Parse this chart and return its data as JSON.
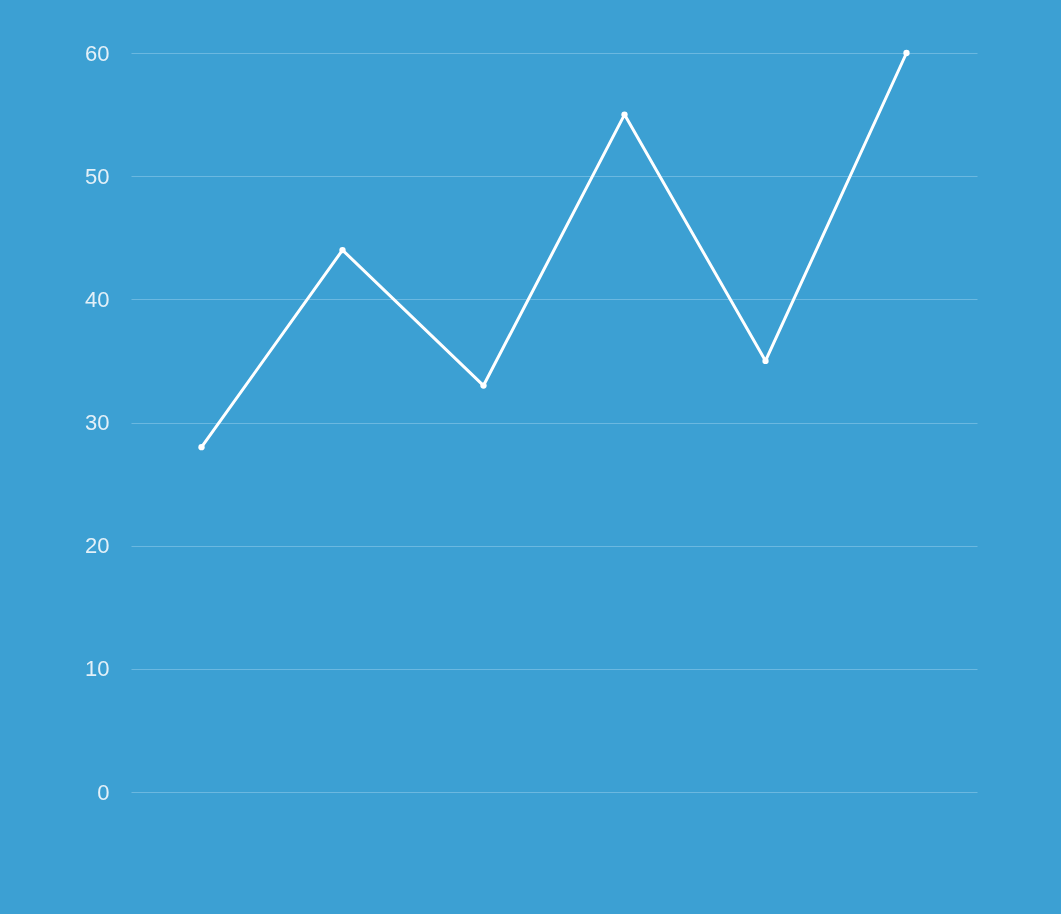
{
  "chart_data": {
    "type": "line",
    "categories": [
      null,
      null,
      null,
      null,
      null,
      null
    ],
    "series": [
      {
        "color": "#ffffff",
        "values": [
          28,
          44,
          33,
          55,
          35,
          60
        ]
      }
    ],
    "ylim": [
      0,
      60
    ],
    "yticks": [
      0,
      10,
      20,
      30,
      40,
      50,
      60
    ],
    "grid": "y",
    "marker": "circle",
    "tick_labels": "y"
  }
}
